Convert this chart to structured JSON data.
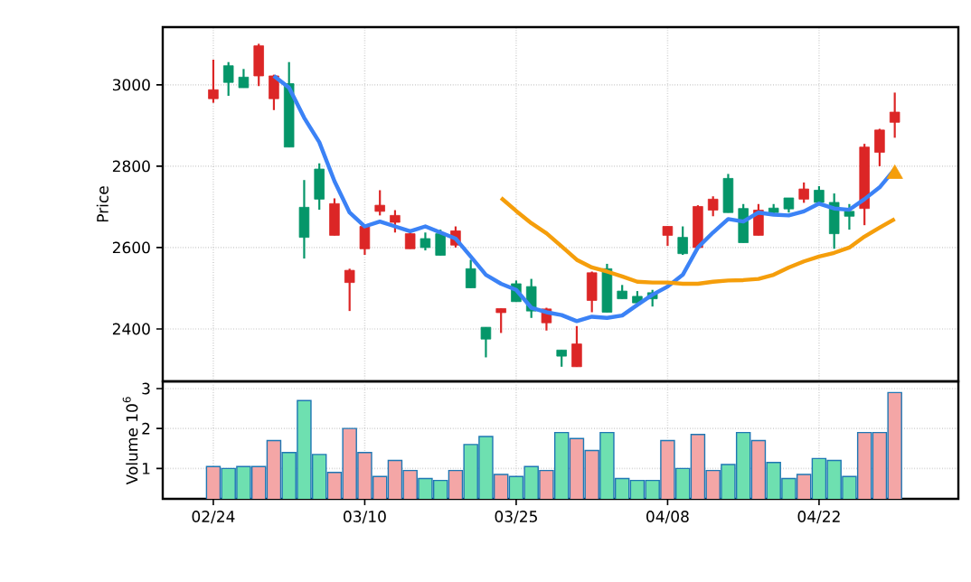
{
  "chart_data": [
    {
      "type": "candlestick",
      "ylabel": "Price",
      "categories": [
        null,
        null,
        null,
        null,
        null,
        null,
        null,
        null,
        null,
        null,
        null,
        null,
        null,
        null,
        null,
        null,
        null,
        null,
        null,
        null,
        null,
        null,
        null,
        null,
        null,
        null,
        null,
        null,
        null,
        null,
        null,
        null,
        null,
        null,
        null,
        null,
        null,
        null,
        null,
        null,
        null,
        null,
        null,
        null,
        null,
        null
      ],
      "ohlc": [
        [
          2966,
          3062,
          2956,
          2988
        ],
        [
          3047,
          3056,
          2973,
          3006
        ],
        [
          3019,
          3039,
          2993,
          2993
        ],
        [
          3022,
          3101,
          2997,
          3096
        ],
        [
          2966,
          3025,
          2938,
          3022
        ],
        [
          3003,
          3056,
          2847,
          2847
        ],
        [
          2699,
          2766,
          2573,
          2625
        ],
        [
          2793,
          2807,
          2693,
          2719
        ],
        [
          2630,
          2721,
          2630,
          2708
        ],
        [
          2514,
          2548,
          2444,
          2544
        ],
        [
          2597,
          2655,
          2582,
          2652
        ],
        [
          2689,
          2741,
          2679,
          2704
        ],
        [
          2662,
          2692,
          2637,
          2679
        ],
        [
          2597,
          2644,
          2597,
          2634
        ],
        [
          2622,
          2637,
          2593,
          2600
        ],
        [
          2634,
          2644,
          2581,
          2581
        ],
        [
          2606,
          2652,
          2600,
          2641
        ],
        [
          2548,
          2570,
          2501,
          2501
        ],
        [
          2404,
          2404,
          2330,
          2375
        ],
        [
          2440,
          2450,
          2390,
          2450
        ],
        [
          2511,
          2519,
          2467,
          2467
        ],
        [
          2504,
          2523,
          2427,
          2444
        ],
        [
          2415,
          2452,
          2396,
          2449
        ],
        [
          2348,
          2348,
          2307,
          2333
        ],
        [
          2307,
          2407,
          2307,
          2363
        ],
        [
          2470,
          2541,
          2441,
          2538
        ],
        [
          2548,
          2560,
          2441,
          2441
        ],
        [
          2493,
          2508,
          2474,
          2474
        ],
        [
          2480,
          2493,
          2455,
          2464
        ],
        [
          2489,
          2496,
          2455,
          2474
        ],
        [
          2630,
          2652,
          2604,
          2652
        ],
        [
          2625,
          2652,
          2582,
          2585
        ],
        [
          2600,
          2704,
          2600,
          2701
        ],
        [
          2692,
          2726,
          2677,
          2719
        ],
        [
          2770,
          2781,
          2686,
          2686
        ],
        [
          2696,
          2707,
          2612,
          2612
        ],
        [
          2630,
          2707,
          2630,
          2692
        ],
        [
          2697,
          2707,
          2683,
          2686
        ],
        [
          2722,
          2722,
          2686,
          2695
        ],
        [
          2719,
          2760,
          2710,
          2744
        ],
        [
          2741,
          2751,
          2711,
          2711
        ],
        [
          2711,
          2733,
          2597,
          2634
        ],
        [
          2689,
          2707,
          2644,
          2677
        ],
        [
          2696,
          2855,
          2655,
          2847
        ],
        [
          2834,
          2892,
          2800,
          2889
        ],
        [
          2908,
          2981,
          2870,
          2933
        ]
      ],
      "colors": [
        "#dc2626",
        "#059669",
        "#059669",
        "#dc2626",
        "#dc2626",
        "#059669",
        "#059669",
        "#059669",
        "#dc2626",
        "#dc2626",
        "#dc2626",
        "#dc2626",
        "#dc2626",
        "#dc2626",
        "#059669",
        "#059669",
        "#dc2626",
        "#059669",
        "#059669",
        "#dc2626",
        "#059669",
        "#059669",
        "#dc2626",
        "#059669",
        "#dc2626",
        "#dc2626",
        "#059669",
        "#059669",
        "#059669",
        "#059669",
        "#dc2626",
        "#059669",
        "#dc2626",
        "#dc2626",
        "#059669",
        "#059669",
        "#dc2626",
        "#059669",
        "#059669",
        "#dc2626",
        "#059669",
        "#059669",
        "#059669",
        "#dc2626",
        "#dc2626",
        "#dc2626"
      ],
      "series": [
        {
          "type": "line",
          "color": "#3b82f6",
          "values": [
            null,
            null,
            null,
            null,
            3022,
            2993,
            2919,
            2859,
            2763,
            2686,
            2652,
            2664,
            2652,
            2640,
            2652,
            2637,
            2622,
            2578,
            2533,
            2511,
            2496,
            2452,
            2441,
            2434,
            2419,
            2430,
            2427,
            2433,
            2459,
            2484,
            2504,
            2533,
            2600,
            2637,
            2670,
            2664,
            2686,
            2681,
            2679,
            2689,
            2708,
            2696,
            2693,
            2719,
            2748,
            2793
          ]
        },
        {
          "type": "line",
          "color": "#f59e0b",
          "values": [
            null,
            null,
            null,
            null,
            null,
            null,
            null,
            null,
            null,
            null,
            null,
            null,
            null,
            null,
            null,
            null,
            null,
            null,
            null,
            2722,
            2690,
            2660,
            2635,
            2603,
            2570,
            2551,
            2541,
            2529,
            2516,
            2514,
            2514,
            2511,
            2511,
            2516,
            2519,
            2520,
            2523,
            2533,
            2551,
            2566,
            2578,
            2587,
            2600,
            2627,
            2649,
            2670
          ]
        },
        {
          "type": "scatter",
          "marker": "triangle",
          "color": "#f59e0b",
          "values": [
            null,
            null,
            null,
            null,
            null,
            null,
            null,
            null,
            null,
            null,
            null,
            null,
            null,
            null,
            null,
            null,
            null,
            null,
            null,
            null,
            null,
            null,
            null,
            null,
            null,
            null,
            null,
            null,
            null,
            null,
            null,
            null,
            null,
            null,
            null,
            null,
            null,
            null,
            null,
            null,
            null,
            null,
            null,
            null,
            null,
            2781
          ]
        }
      ],
      "ylim": [
        2271,
        3142
      ],
      "yticks": [
        2400,
        2600,
        2800,
        3000
      ],
      "grid": true,
      "tick_labels": "y"
    },
    {
      "type": "bar",
      "ylabel": "Volume  10$^{6}$",
      "categories": [
        "02/24",
        null,
        null,
        null,
        null,
        null,
        null,
        null,
        null,
        null,
        "03/10",
        null,
        null,
        null,
        null,
        null,
        null,
        null,
        null,
        null,
        "03/25",
        null,
        null,
        null,
        null,
        null,
        null,
        null,
        null,
        null,
        "04/08",
        null,
        null,
        null,
        null,
        null,
        null,
        null,
        null,
        null,
        "04/22",
        null,
        null,
        null,
        null,
        null
      ],
      "values": [
        1.05,
        1.0,
        1.05,
        1.05,
        1.7,
        1.4,
        2.7,
        1.35,
        0.9,
        2.0,
        1.4,
        0.8,
        1.2,
        0.95,
        0.75,
        0.7,
        0.95,
        1.6,
        1.8,
        0.85,
        0.8,
        1.05,
        0.95,
        1.9,
        1.75,
        1.45,
        1.9,
        0.75,
        0.7,
        0.7,
        1.7,
        1.0,
        1.85,
        0.95,
        1.1,
        1.9,
        1.7,
        1.15,
        0.75,
        0.85,
        1.25,
        1.2,
        0.8,
        1.9,
        1.9,
        2.9
      ],
      "colors": [
        "#f4a6a6",
        "#6ee0b0",
        "#6ee0b0",
        "#f4a6a6",
        "#f4a6a6",
        "#6ee0b0",
        "#6ee0b0",
        "#6ee0b0",
        "#f4a6a6",
        "#f4a6a6",
        "#f4a6a6",
        "#f4a6a6",
        "#f4a6a6",
        "#f4a6a6",
        "#6ee0b0",
        "#6ee0b0",
        "#f4a6a6",
        "#6ee0b0",
        "#6ee0b0",
        "#f4a6a6",
        "#6ee0b0",
        "#6ee0b0",
        "#f4a6a6",
        "#6ee0b0",
        "#f4a6a6",
        "#f4a6a6",
        "#6ee0b0",
        "#6ee0b0",
        "#6ee0b0",
        "#6ee0b0",
        "#f4a6a6",
        "#6ee0b0",
        "#f4a6a6",
        "#f4a6a6",
        "#6ee0b0",
        "#6ee0b0",
        "#f4a6a6",
        "#6ee0b0",
        "#6ee0b0",
        "#f4a6a6",
        "#6ee0b0",
        "#6ee0b0",
        "#6ee0b0",
        "#f4a6a6",
        "#f4a6a6",
        "#f4a6a6"
      ],
      "ylim": [
        0.24,
        3.18
      ],
      "yticks": [
        1,
        2,
        3
      ],
      "grid": true
    }
  ]
}
